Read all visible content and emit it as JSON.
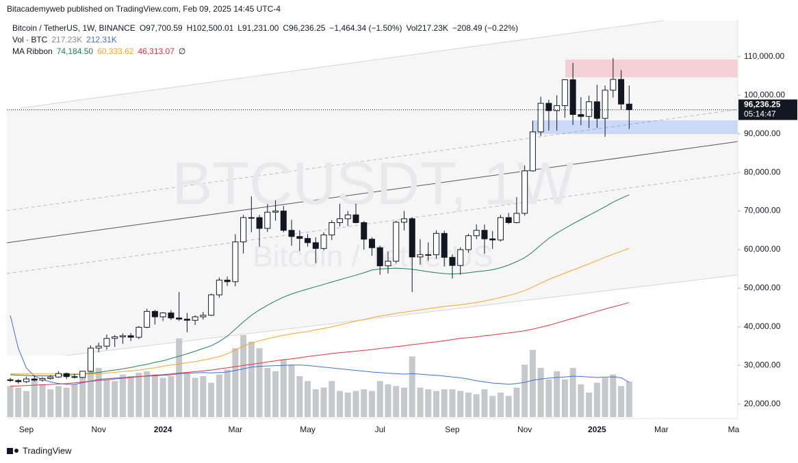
{
  "header": {
    "published": "Bitacademyweb published on TradingView.com, Feb 09, 2025 14:45 UTC-4",
    "symbol": "Bitcoin / TetherUS, 1W, BINANCE",
    "ohlc": [
      "O97,700.59",
      "H102,500.01",
      "L91,231.00",
      "C96,236.25",
      "−1,464.34 (−1.50%)"
    ],
    "volume_text": "Vol217.23K",
    "volume_change": "−208.49 (−0.22%)"
  },
  "legend": {
    "volume_title": "Vol · BTC",
    "volume_values": [
      "217.23K",
      "212.31K"
    ],
    "ma_title": "MA Ribbon",
    "ma_values": [
      "74,184.50",
      "60,333.62",
      "46,313.07"
    ],
    "ma_extra": "∅"
  },
  "watermark": {
    "symbol": "BTCUSDT, 1W",
    "name": "Bitcoin / TetherUS"
  },
  "price_label": {
    "price": "96,236.25",
    "countdown": "05:14:47"
  },
  "footer": "TradingView",
  "chart_data": {
    "type": "candlestick",
    "categories": [
      null,
      null,
      "Sep",
      null,
      null,
      null,
      null,
      null,
      null,
      null,
      null,
      "Nov",
      null,
      null,
      null,
      null,
      null,
      null,
      null,
      "2024",
      null,
      null,
      null,
      null,
      null,
      null,
      null,
      null,
      "Mar",
      null,
      null,
      null,
      null,
      null,
      null,
      null,
      null,
      "May",
      null,
      null,
      null,
      null,
      null,
      null,
      null,
      null,
      "Jul",
      null,
      null,
      null,
      null,
      null,
      null,
      null,
      null,
      "Sep",
      null,
      null,
      null,
      null,
      null,
      null,
      null,
      null,
      "Nov",
      null,
      null,
      null,
      null,
      null,
      null,
      null,
      null,
      "2025",
      null,
      null,
      null,
      null,
      null,
      null,
      null,
      "Mar",
      null,
      null,
      null,
      null,
      null,
      null,
      null,
      null,
      "Ma"
    ],
    "open": [
      26300,
      26100,
      25800,
      26500,
      26200,
      26600,
      27000,
      27900,
      27100,
      26900,
      28500,
      34500,
      35000,
      37000,
      37400,
      37700,
      37300,
      39900,
      44000,
      42600,
      43600,
      42300,
      42000,
      41700,
      42600,
      43000,
      48300,
      52100,
      51700,
      62000,
      68300,
      68300,
      65500,
      69700,
      70000,
      65000,
      63400,
      62900,
      61800,
      60300,
      63800,
      67000,
      68000,
      69000,
      67000,
      62700,
      60500,
      55800,
      57000,
      67100,
      68000,
      58100,
      58700,
      58700,
      64200,
      58000,
      55900,
      60000,
      63600,
      65000,
      62800,
      62500,
      68300,
      67000,
      69400,
      80400,
      90500,
      97900,
      96000,
      97300,
      104000,
      95000,
      94500,
      98300,
      94000,
      101300,
      104100,
      97700.59,
      null,
      null,
      null,
      null,
      null,
      null,
      null,
      null,
      null,
      null,
      null,
      null,
      null
    ],
    "high": [
      26800,
      26500,
      27100,
      27400,
      27000,
      27500,
      28500,
      28200,
      27800,
      28600,
      35200,
      35900,
      38000,
      37900,
      38300,
      38400,
      40200,
      44700,
      44400,
      43800,
      44300,
      49000,
      43600,
      43000,
      43900,
      48600,
      52800,
      53000,
      64000,
      69000,
      73800,
      69000,
      71800,
      72800,
      71300,
      67700,
      65000,
      64000,
      63200,
      64500,
      67600,
      71900,
      70000,
      71900,
      67400,
      63200,
      61000,
      59500,
      67500,
      70000,
      68400,
      62700,
      61900,
      65000,
      64900,
      58800,
      60600,
      64100,
      66500,
      66500,
      64800,
      69000,
      69500,
      73600,
      81800,
      93400,
      99600,
      98800,
      100000,
      104100,
      108400,
      99500,
      99900,
      102700,
      102500,
      109600,
      106500,
      102500.01,
      null,
      null,
      null,
      null,
      null,
      null,
      null,
      null,
      null,
      null,
      null,
      null,
      null
    ],
    "low": [
      25700,
      25300,
      25400,
      25900,
      25800,
      26300,
      26800,
      26500,
      26600,
      26700,
      28300,
      33400,
      34100,
      34800,
      35600,
      36300,
      36800,
      39600,
      40600,
      41500,
      41800,
      41500,
      38600,
      40500,
      41900,
      42800,
      47600,
      50600,
      50500,
      59000,
      64500,
      60800,
      64600,
      67500,
      64500,
      61000,
      59600,
      60800,
      56500,
      59800,
      62500,
      66000,
      66100,
      66800,
      60000,
      58400,
      53500,
      53800,
      56500,
      65000,
      49000,
      56100,
      57100,
      57600,
      55600,
      52500,
      53500,
      59200,
      62700,
      58900,
      60200,
      62100,
      66600,
      66800,
      68800,
      80200,
      89400,
      90800,
      90800,
      94200,
      92300,
      92200,
      91500,
      91500,
      89200,
      99400,
      96200,
      91231,
      null,
      null,
      null,
      null,
      null,
      null,
      null,
      null,
      null,
      null,
      null,
      null,
      null
    ],
    "close": [
      26100,
      25800,
      26500,
      26200,
      26600,
      27000,
      27900,
      27100,
      26900,
      28500,
      34500,
      35000,
      37000,
      37400,
      37700,
      37300,
      39900,
      44000,
      42600,
      43600,
      42300,
      42000,
      41700,
      42600,
      43000,
      48300,
      52100,
      51700,
      62000,
      68300,
      68300,
      65500,
      69700,
      70000,
      65000,
      63400,
      62900,
      61800,
      60300,
      63800,
      67000,
      68000,
      69000,
      67000,
      62700,
      60500,
      55800,
      57000,
      67100,
      68000,
      58100,
      58700,
      58700,
      64200,
      58000,
      55900,
      60000,
      63600,
      65000,
      62800,
      62500,
      68300,
      67000,
      69400,
      80400,
      90500,
      97900,
      96000,
      97300,
      104000,
      95000,
      94500,
      98300,
      94000,
      101300,
      104100,
      97700.59,
      96236.25,
      null,
      null,
      null,
      null,
      null,
      null,
      null,
      null,
      null,
      null,
      null,
      null,
      null
    ],
    "volume": [
      190000,
      180000,
      160000,
      230000,
      200000,
      170000,
      190000,
      180000,
      200000,
      250000,
      340000,
      300000,
      230000,
      220000,
      260000,
      250000,
      270000,
      280000,
      260000,
      240000,
      250000,
      480000,
      270000,
      240000,
      250000,
      210000,
      260000,
      290000,
      420000,
      500000,
      460000,
      420000,
      300000,
      280000,
      350000,
      320000,
      250000,
      220000,
      170000,
      180000,
      220000,
      160000,
      150000,
      160000,
      170000,
      160000,
      220000,
      200000,
      190000,
      180000,
      370000,
      180000,
      170000,
      160000,
      170000,
      170000,
      160000,
      150000,
      140000,
      170000,
      130000,
      150000,
      130000,
      180000,
      320000,
      410000,
      300000,
      230000,
      280000,
      230000,
      300000,
      200000,
      150000,
      210000,
      240000,
      260000,
      190000,
      217230,
      null,
      null,
      null,
      null,
      null,
      null,
      null,
      null,
      null,
      null,
      null,
      null,
      null
    ],
    "volume_ma": [
      620000,
      420000,
      300000,
      250000,
      230000,
      215000,
      205000,
      200000,
      200000,
      210000,
      220000,
      230000,
      235000,
      238000,
      240000,
      245000,
      248000,
      250000,
      252000,
      255000,
      258000,
      265000,
      268000,
      270000,
      272000,
      270000,
      272000,
      275000,
      285000,
      295000,
      305000,
      310000,
      312000,
      314000,
      316000,
      318000,
      318000,
      315000,
      310000,
      305000,
      300000,
      295000,
      290000,
      285000,
      280000,
      275000,
      272000,
      268000,
      265000,
      262000,
      265000,
      262000,
      258000,
      255000,
      250000,
      245000,
      240000,
      232000,
      222000,
      215000,
      208000,
      205000,
      200000,
      205000,
      212000,
      225000,
      232000,
      238000,
      242000,
      245000,
      250000,
      248000,
      245000,
      242000,
      244000,
      246000,
      240000,
      212310,
      null,
      null,
      null,
      null,
      null,
      null,
      null,
      null,
      null,
      null,
      null,
      null,
      null
    ],
    "series": [
      {
        "color": "#1e7d55",
        "values": [
          27600,
          27500,
          27400,
          27300,
          27300,
          27300,
          27400,
          27500,
          27600,
          27800,
          28000,
          28200,
          28500,
          28800,
          29100,
          29500,
          29900,
          30300,
          30800,
          31200,
          31800,
          32400,
          33000,
          33700,
          34400,
          35100,
          36200,
          37600,
          39400,
          41300,
          43000,
          44400,
          45600,
          46700,
          47700,
          48500,
          49200,
          49800,
          50400,
          51000,
          51600,
          52200,
          52800,
          53400,
          54000,
          54700,
          55000,
          55100,
          55200,
          55100,
          54900,
          54600,
          54300,
          54000,
          53800,
          53700,
          53800,
          54000,
          54300,
          54500,
          54800,
          55300,
          56000,
          56900,
          57900,
          59400,
          61200,
          62900,
          64300,
          65500,
          66700,
          67800,
          68900,
          70000,
          71100,
          72300,
          73300,
          74184.5,
          null,
          null,
          null,
          null,
          null,
          null,
          null,
          null,
          null,
          null,
          null,
          null,
          null
        ]
      },
      {
        "color": "#f5a623",
        "values": [
          27800,
          27800,
          27800,
          27800,
          27800,
          27800,
          27800,
          27800,
          27800,
          27800,
          27800,
          27900,
          28000,
          28200,
          28400,
          28600,
          28800,
          29100,
          29400,
          29800,
          30100,
          30400,
          30700,
          31000,
          31400,
          31800,
          32300,
          33000,
          34000,
          35000,
          35800,
          36400,
          36900,
          37400,
          37800,
          38200,
          38500,
          38800,
          39200,
          39600,
          40000,
          40500,
          41000,
          41500,
          41900,
          42400,
          42800,
          43100,
          43500,
          43800,
          44100,
          44400,
          44700,
          45000,
          45300,
          45500,
          45700,
          46000,
          46300,
          46700,
          47100,
          47600,
          48100,
          48700,
          49400,
          50300,
          51300,
          52300,
          53100,
          53900,
          54700,
          55500,
          56300,
          57200,
          58000,
          58800,
          59600,
          60333.62,
          null,
          null,
          null,
          null,
          null,
          null,
          null,
          null,
          null,
          null,
          null,
          null,
          null
        ]
      },
      {
        "color": "#e0313f",
        "values": [
          24600,
          24700,
          24800,
          24900,
          25000,
          25100,
          25200,
          25300,
          25500,
          25700,
          25900,
          26100,
          26300,
          26500,
          26700,
          26900,
          27100,
          27300,
          27500,
          27600,
          27800,
          28000,
          28200,
          28400,
          28600,
          28800,
          29100,
          29400,
          29700,
          30000,
          30300,
          30600,
          30900,
          31200,
          31500,
          31700,
          32000,
          32300,
          32600,
          32800,
          33100,
          33300,
          33500,
          33700,
          33900,
          34100,
          34400,
          34600,
          34900,
          35100,
          35400,
          35600,
          35900,
          36100,
          36400,
          36700,
          37000,
          37200,
          37400,
          37700,
          37900,
          38200,
          38400,
          38700,
          39000,
          39400,
          39900,
          40400,
          41000,
          41600,
          42200,
          42800,
          43400,
          44000,
          44600,
          45200,
          45700,
          46313.07,
          null,
          null,
          null,
          null,
          null,
          null,
          null,
          null,
          null,
          null,
          null,
          null,
          null
        ]
      }
    ],
    "up_color": "#ffffff",
    "down_color": "#131722",
    "volume_color": "#c7c8cc",
    "volume_ma_color": "#3b6fe0",
    "ylim": [
      16600,
      119700
    ],
    "yticks": [
      {
        "value": 20000,
        "label": "20,000.00"
      },
      {
        "value": 30000,
        "label": "30,000.00"
      },
      {
        "value": 40000,
        "label": "40,000.00"
      },
      {
        "value": 50000,
        "label": "50,000.00"
      },
      {
        "value": 60000,
        "label": "60,000.00"
      },
      {
        "value": 70000,
        "label": "70,000.00"
      },
      {
        "value": 80000,
        "label": "80,000.00"
      },
      {
        "value": 90000,
        "label": "90,000.00"
      },
      {
        "value": 100000,
        "label": "100,000.00"
      },
      {
        "value": 110000,
        "label": "110,000.00"
      }
    ],
    "grid": false
  }
}
